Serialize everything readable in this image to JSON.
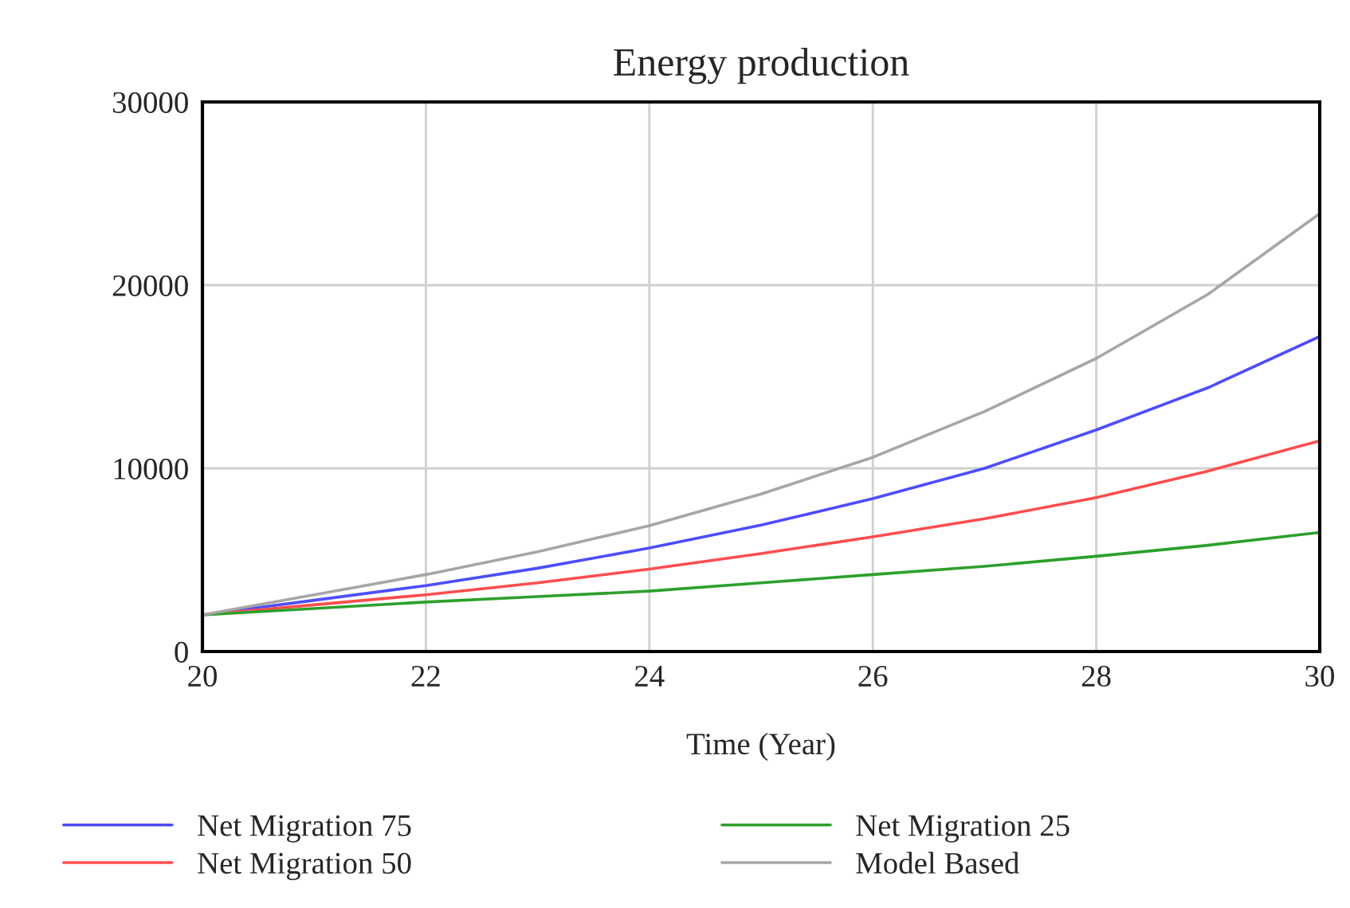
{
  "chart_data": {
    "type": "line",
    "title": "Energy production",
    "xlabel": "Time (Year)",
    "x": [
      20,
      21,
      22,
      23,
      24,
      25,
      26,
      27,
      28,
      29,
      30
    ],
    "series": [
      {
        "name": "Net Migration 75",
        "color": "#4d4dff",
        "values": [
          2000,
          2800,
          3600,
          4550,
          5650,
          6900,
          8350,
          10000,
          12100,
          14400,
          17200
        ]
      },
      {
        "name": "Net Migration 50",
        "color": "#ff4d4d",
        "values": [
          2000,
          2550,
          3100,
          3750,
          4500,
          5350,
          6260,
          7250,
          8400,
          9850,
          11500
        ]
      },
      {
        "name": "Net Migration 25",
        "color": "#2ca02c",
        "values": [
          2000,
          2350,
          2700,
          3000,
          3300,
          3750,
          4200,
          4650,
          5200,
          5800,
          6500
        ]
      },
      {
        "name": "Model Based",
        "color": "#a6a6a6",
        "values": [
          2000,
          3100,
          4200,
          5450,
          6870,
          8600,
          10600,
          13100,
          16000,
          19500,
          23900
        ]
      }
    ],
    "xlim": [
      20,
      30
    ],
    "xticks": [
      20,
      22,
      24,
      26,
      28,
      30
    ],
    "ylim": [
      0,
      30000
    ],
    "yticks": [
      0,
      10000,
      20000,
      30000
    ],
    "grid": true,
    "legend": "bottom"
  }
}
